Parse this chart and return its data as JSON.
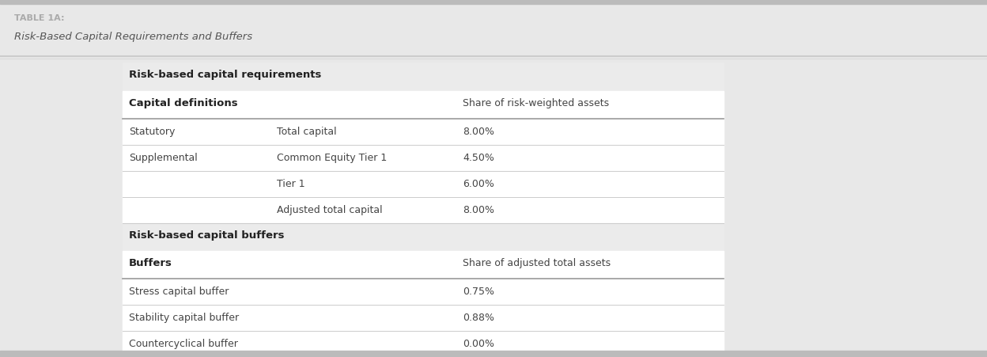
{
  "table_label": "TABLE 1A:",
  "table_title": "Risk-Based Capital Requirements and Buffers",
  "outer_bg": "#e8e8e8",
  "white_bg": "#ffffff",
  "section_bg": "#ebebeb",
  "label_color": "#aaaaaa",
  "title_color": "#555555",
  "text_color": "#444444",
  "bold_color": "#222222",
  "line_color": "#cccccc",
  "line_color_dark": "#aaaaaa",
  "section1_header": "Risk-based capital requirements",
  "col1_header": "Capital definitions",
  "col3_header_1": "Share of risk-weighted assets",
  "col3_header_2": "Share of adjusted total assets",
  "section2_header": "Risk-based capital buffers",
  "buffers_col1_header": "Buffers",
  "rows_requirements": [
    {
      "col1": "Statutory",
      "col2": "Total capital",
      "col3": "8.00%"
    },
    {
      "col1": "Supplemental",
      "col2": "Common Equity Tier 1",
      "col3": "4.50%"
    },
    {
      "col1": "",
      "col2": "Tier 1",
      "col3": "6.00%"
    },
    {
      "col1": "",
      "col2": "Adjusted total capital",
      "col3": "8.00%"
    }
  ],
  "rows_buffers": [
    {
      "col1": "Stress capital buffer",
      "col3": "0.75%"
    },
    {
      "col1": "Stability capital buffer",
      "col3": "0.88%"
    },
    {
      "col1": "Countercyclical buffer",
      "col3": "0.00%"
    }
  ],
  "fig_w": 12.48,
  "fig_h": 4.52,
  "dpi": 100
}
